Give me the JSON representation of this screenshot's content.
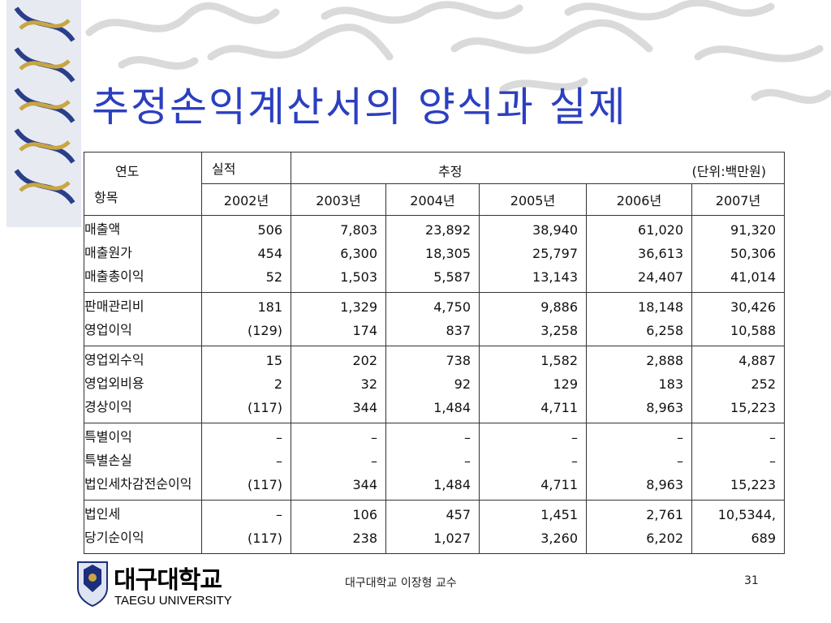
{
  "title": "추정손익계산서의 양식과 실제",
  "table": {
    "header": {
      "year_label": "연도",
      "item_label": "항목",
      "actual": "실적",
      "estimate": "추정",
      "unit": "(단위:백만원)",
      "years": [
        "2002년",
        "2003년",
        "2004년",
        "2005년",
        "2006년",
        "2007년"
      ]
    },
    "groups": [
      {
        "labels": [
          "매출액",
          "매출원가",
          "매출총이익"
        ],
        "columns": [
          [
            "506",
            "454",
            "52"
          ],
          [
            "7,803",
            "6,300",
            "1,503"
          ],
          [
            "23,892",
            "18,305",
            "5,587"
          ],
          [
            "38,940",
            "25,797",
            "13,143"
          ],
          [
            "61,020",
            "36,613",
            "24,407"
          ],
          [
            "91,320",
            "50,306",
            "41,014"
          ]
        ]
      },
      {
        "labels": [
          "판매관리비",
          "영업이익"
        ],
        "columns": [
          [
            "181",
            "(129)"
          ],
          [
            "1,329",
            "174"
          ],
          [
            "4,750",
            "837"
          ],
          [
            "9,886",
            "3,258"
          ],
          [
            "18,148",
            "6,258"
          ],
          [
            "30,426",
            "10,588"
          ]
        ]
      },
      {
        "labels": [
          "영업외수익",
          "영업외비용",
          "경상이익"
        ],
        "columns": [
          [
            "15",
            "2",
            "(117)"
          ],
          [
            "202",
            "32",
            "344"
          ],
          [
            "738",
            "92",
            "1,484"
          ],
          [
            "1,582",
            "129",
            "4,711"
          ],
          [
            "2,888",
            "183",
            "8,963"
          ],
          [
            "4,887",
            "252",
            "15,223"
          ]
        ]
      },
      {
        "labels": [
          "특별이익",
          "특별손실",
          "법인세차감전순이익"
        ],
        "columns": [
          [
            "–",
            "–",
            "(117)"
          ],
          [
            "–",
            "–",
            "344"
          ],
          [
            "–",
            "–",
            "1,484"
          ],
          [
            "–",
            "–",
            "4,711"
          ],
          [
            "–",
            "–",
            "8,963"
          ],
          [
            "–",
            "–",
            "15,223"
          ]
        ]
      },
      {
        "labels": [
          "법인세",
          "당기순이익"
        ],
        "columns": [
          [
            "–",
            "(117)"
          ],
          [
            "106",
            "238"
          ],
          [
            "457",
            "1,027"
          ],
          [
            "1,451",
            "3,260"
          ],
          [
            "2,761",
            "6,202"
          ],
          [
            "10,5344,",
            "689"
          ]
        ]
      }
    ]
  },
  "footer": {
    "logo_name": "대구대학교",
    "logo_english": "TAEGU UNIVERSITY",
    "author": "대구대학교 이장형 교수",
    "page": 31
  }
}
